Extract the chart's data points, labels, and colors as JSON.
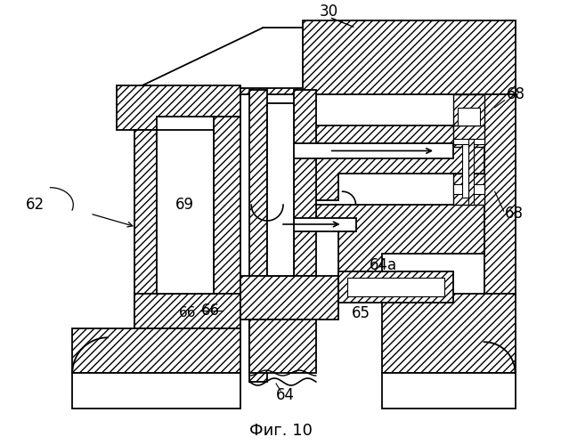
{
  "title": "Фиг. 10",
  "title_fontsize": 13,
  "background_color": "#ffffff",
  "fig_width": 6.3,
  "fig_height": 5.0,
  "dpi": 100
}
